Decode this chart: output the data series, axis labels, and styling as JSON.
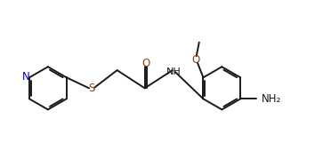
{
  "bg_color": "#ffffff",
  "bond_color": "#1a1a1a",
  "N_color": "#0000cc",
  "O_color": "#8B4513",
  "S_color": "#8B4513",
  "line_width": 1.4,
  "font_size": 8.5,
  "figsize": [
    3.72,
    1.87
  ],
  "dpi": 100,
  "xlim": [
    0,
    9.5
  ],
  "ylim": [
    0,
    4.5
  ]
}
